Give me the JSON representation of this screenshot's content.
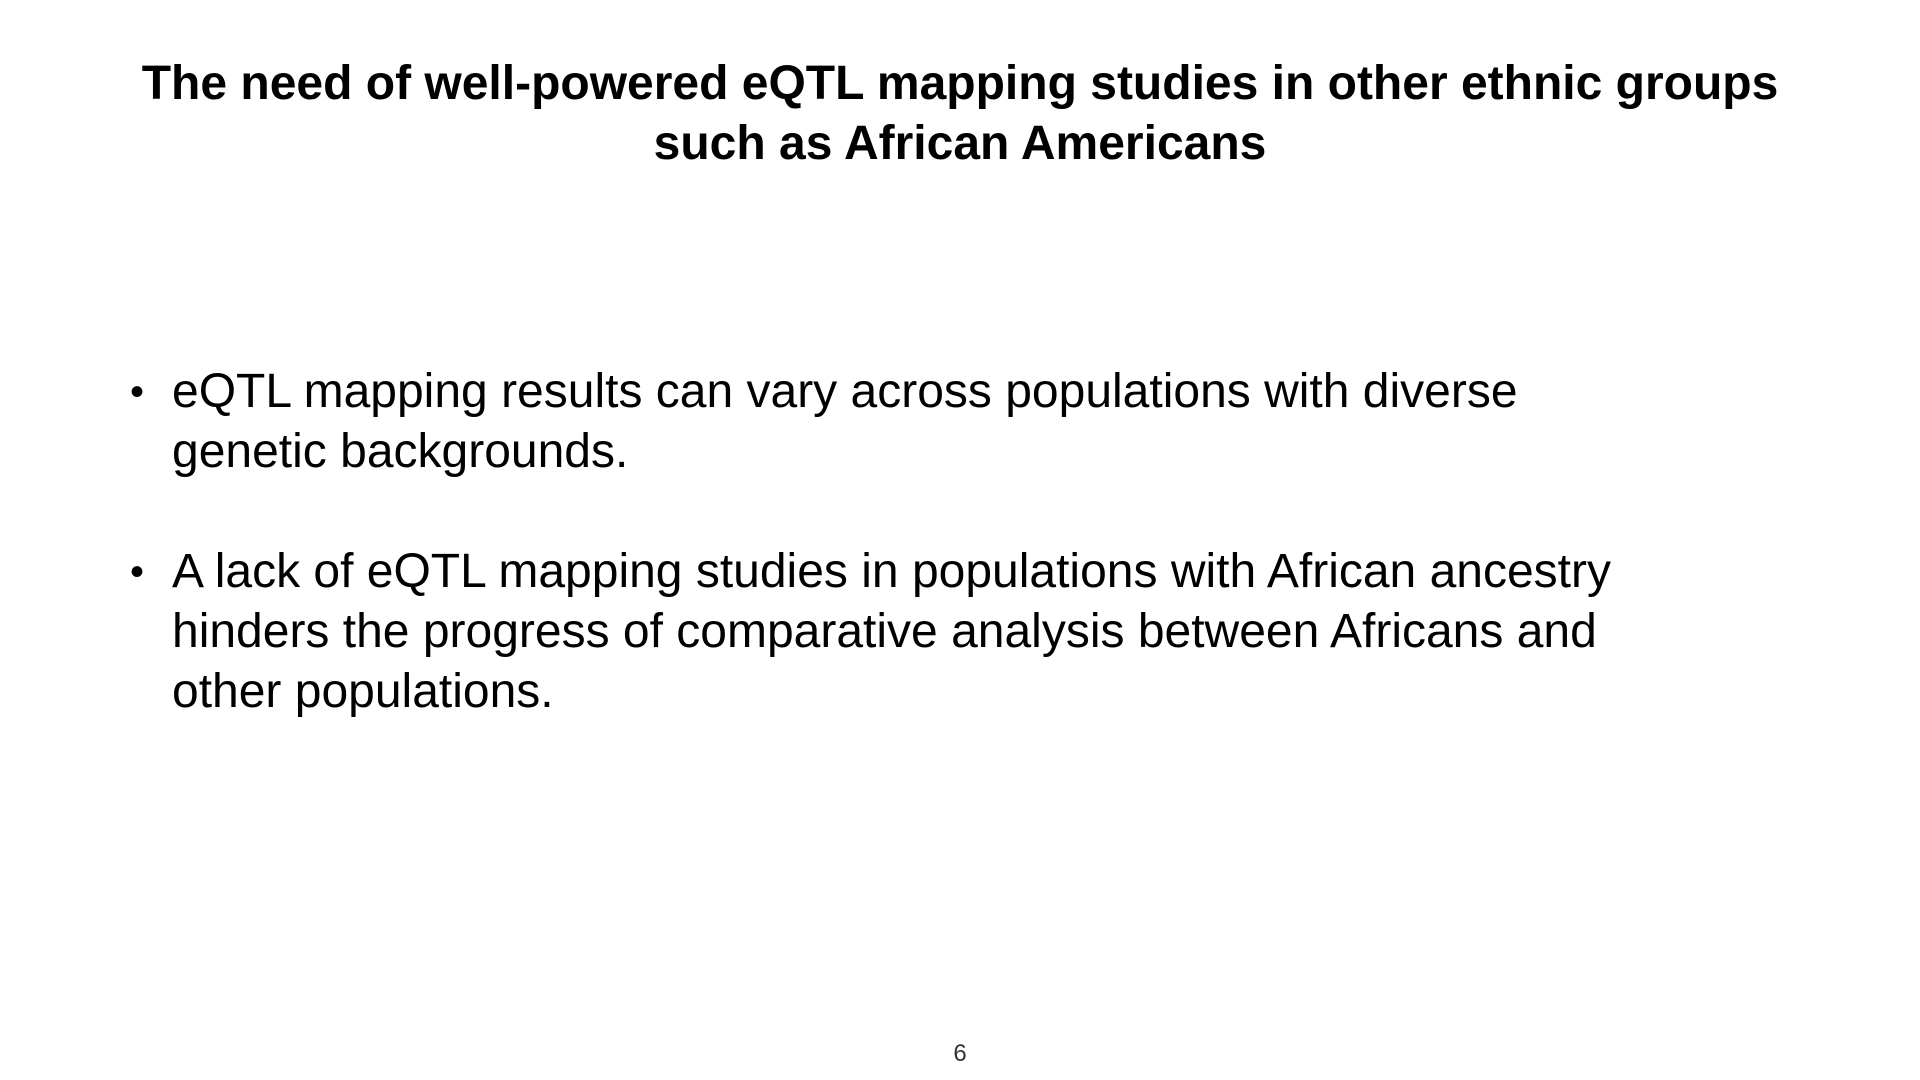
{
  "slide": {
    "title_lines": [
      "The need of well-powered eQTL mapping studies in other ethnic groups",
      "such as African Americans"
    ],
    "bullet_symbol": "•",
    "bullets": [
      {
        "lines": [
          "eQTL mapping results can vary across populations with diverse",
          "genetic backgrounds."
        ]
      },
      {
        "lines": [
          "A lack of eQTL mapping studies in populations with African ancestry",
          "hinders the progress of comparative analysis between Africans and",
          "other populations."
        ]
      }
    ],
    "page_number": "6"
  },
  "colors": {
    "background": "#ffffff",
    "text": "#000000"
  }
}
